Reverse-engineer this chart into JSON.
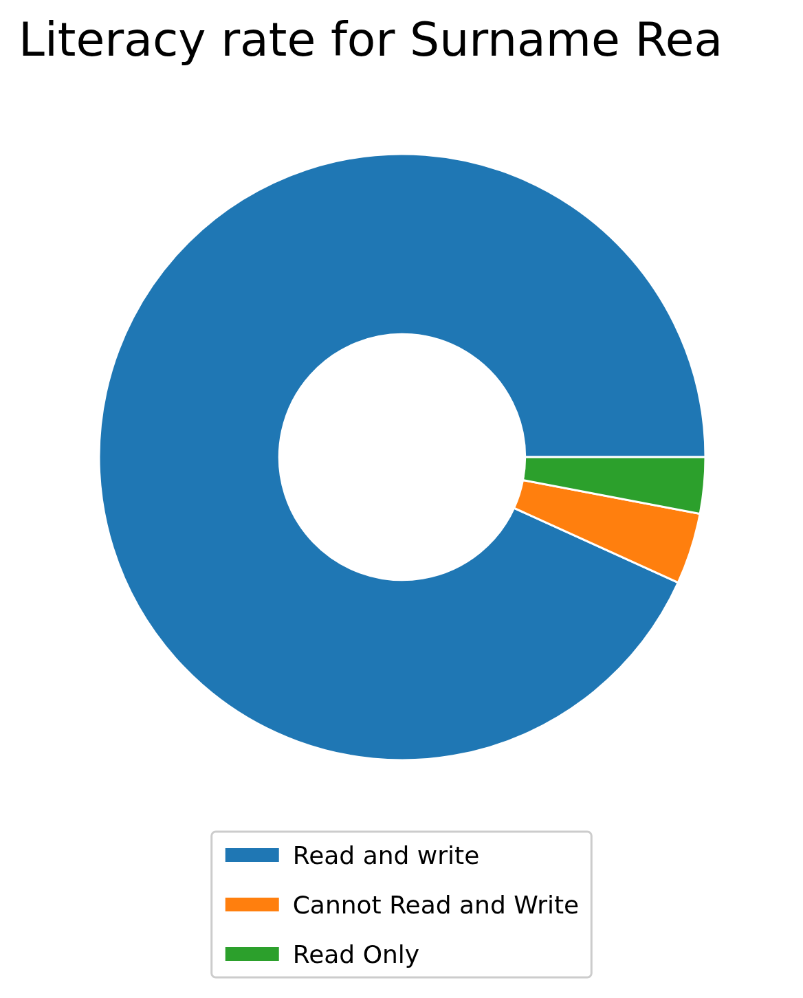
{
  "chart_data": {
    "type": "donut",
    "title": "Literacy rate for Surname Rea",
    "categories": [
      "Read and write",
      "Cannot Read and Write",
      "Read Only"
    ],
    "values": [
      93.2,
      3.8,
      3.0
    ],
    "colors": [
      "#1f77b4",
      "#ff7f0e",
      "#2ca02c"
    ],
    "legend": "bottom"
  }
}
